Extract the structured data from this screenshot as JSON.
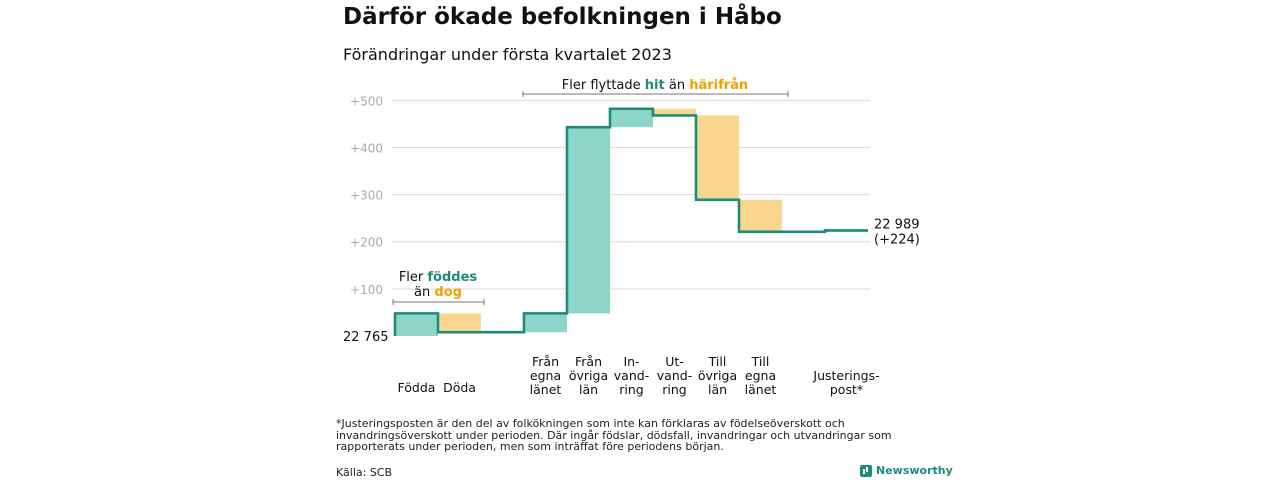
{
  "title": "Därför ökade befolkningen i Håbo",
  "subtitle": "Förändringar under första kvartalet 2023",
  "colors": {
    "teal": "#8dd5c9",
    "teal_line": "#1e8c7a",
    "orange": "#f9d78f",
    "orange_text": "#f0a202",
    "grid": "#d9d9d9",
    "tick": "#aaaaaa"
  },
  "chart_data": {
    "type": "waterfall",
    "start_value": 22765,
    "start_label": "22 765",
    "end_label": "22 989",
    "end_change_label": "(+224)",
    "ylim": [
      -15,
      525
    ],
    "yticks": [
      {
        "value": 100,
        "label": "+100"
      },
      {
        "value": 200,
        "label": "+200"
      },
      {
        "value": 300,
        "label": "+300"
      },
      {
        "value": 400,
        "label": "+400"
      },
      {
        "value": 500,
        "label": "+500"
      }
    ],
    "steps": [
      {
        "label": [
          "Födda"
        ],
        "start": 0,
        "end": 48,
        "kind": "in"
      },
      {
        "label": [
          "Döda"
        ],
        "start": 48,
        "end": 8,
        "kind": "out"
      },
      {
        "label": [],
        "start": 8,
        "end": 8,
        "kind": "flat"
      },
      {
        "label": [
          "Från",
          "egna",
          "länet"
        ],
        "start": 8,
        "end": 48,
        "kind": "in"
      },
      {
        "label": [
          "Från",
          "övriga",
          "län"
        ],
        "start": 48,
        "end": 443,
        "kind": "in"
      },
      {
        "label": [
          "In-",
          "vand-",
          "ring"
        ],
        "start": 443,
        "end": 482,
        "kind": "in"
      },
      {
        "label": [
          "Ut-",
          "vand-",
          "ring"
        ],
        "start": 482,
        "end": 468,
        "kind": "out"
      },
      {
        "label": [
          "Till",
          "övriga",
          "län"
        ],
        "start": 468,
        "end": 289,
        "kind": "out"
      },
      {
        "label": [
          "Till",
          "egna",
          "länet"
        ],
        "start": 289,
        "end": 221,
        "kind": "out"
      },
      {
        "label": [],
        "start": 221,
        "end": 221,
        "kind": "flat"
      },
      {
        "label": [
          "Justerings-",
          "post*"
        ],
        "start": 221,
        "end": 224,
        "kind": "in"
      }
    ],
    "annotations": {
      "births": {
        "line1": "Fler",
        "line1_em": "föddes",
        "line2": "än",
        "line2_em": "dog"
      },
      "migration": {
        "pre": "Fler flyttade",
        "em1": "hit",
        "mid": "än",
        "em2": "härifrån"
      }
    }
  },
  "footnote": "*Justeringsposten är den del av folkökningen som inte kan förklaras av födelseöverskott och invandringsöverskott under perioden. Där ingår födslar, dödsfall, invandringar och utvandringar som rapporterats under perioden, men som inträffat före periodens början.",
  "source": "Källa: SCB",
  "brand": "Newsworthy",
  "brand_icon": "bar-chart-icon"
}
